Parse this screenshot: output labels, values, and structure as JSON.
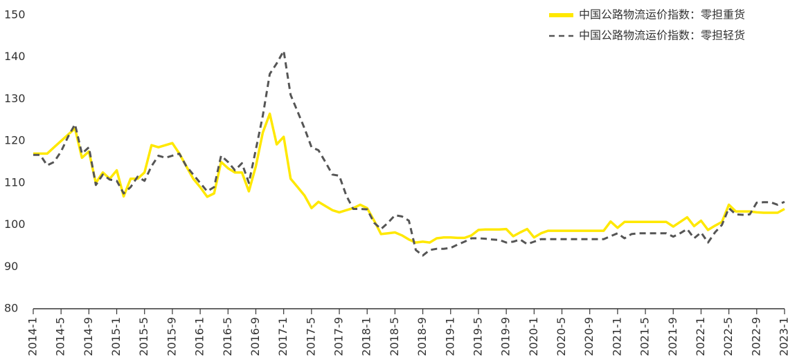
{
  "chart_data": {
    "type": "line",
    "categories": [
      "2014-1",
      null,
      null,
      null,
      "2014-5",
      null,
      null,
      null,
      "2014-9",
      null,
      null,
      null,
      "2015-1",
      null,
      null,
      null,
      "2015-5",
      null,
      null,
      null,
      "2015-9",
      null,
      null,
      null,
      "2016-1",
      null,
      null,
      null,
      "2016-5",
      null,
      null,
      null,
      "2016-9",
      null,
      null,
      null,
      "2017-1",
      null,
      null,
      null,
      "2017-5",
      null,
      null,
      null,
      "2017-9",
      null,
      null,
      null,
      "2018-1",
      null,
      null,
      null,
      "2018-5",
      null,
      null,
      null,
      "2018-9",
      null,
      null,
      null,
      "2019-1",
      null,
      null,
      null,
      "2019-5",
      null,
      null,
      null,
      "2019-9",
      null,
      null,
      null,
      "2020-1",
      null,
      null,
      null,
      "2020-5",
      null,
      null,
      null,
      "2020-9",
      null,
      null,
      null,
      "2021-1",
      null,
      null,
      null,
      "2021-5",
      null,
      null,
      null,
      "2021-9",
      null,
      null,
      null,
      "2022-1",
      null,
      null,
      null,
      "2022-5",
      null,
      null,
      null,
      "2022-9",
      null,
      null,
      null,
      "2023-1"
    ],
    "series": [
      {
        "name": "中国公路物流运价指数：零担重货",
        "color": "#ffe800",
        "dash": false,
        "values": [
          117,
          117,
          117,
          118.5,
          120,
          121.5,
          123,
          116,
          117.5,
          110,
          112.5,
          111,
          113,
          106.8,
          111,
          111,
          112.5,
          119,
          118.5,
          119,
          119.5,
          117,
          114,
          111,
          109,
          106.7,
          107.5,
          115,
          113.5,
          112.5,
          112.5,
          108,
          114,
          122,
          126.5,
          119.2,
          121,
          111,
          109,
          107,
          104,
          105.5,
          104.5,
          103.5,
          103,
          103.5,
          104,
          104.8,
          104,
          101,
          97.8,
          98,
          98.2,
          97.5,
          96.5,
          95.8,
          96,
          95.8,
          96.8,
          97,
          97,
          96.9,
          96.9,
          97.5,
          98.8,
          98.9,
          98.9,
          98.9,
          99,
          97.3,
          98.2,
          99,
          97,
          98,
          98.6,
          98.6,
          98.6,
          98.6,
          98.6,
          98.6,
          98.6,
          98.6,
          98.6,
          100.8,
          99.3,
          100.7,
          100.7,
          100.7,
          100.7,
          100.7,
          100.7,
          100.7,
          99.6,
          100.7,
          101.8,
          99.7,
          101,
          98.8,
          99.8,
          100.7,
          104.8,
          103.2,
          103.2,
          103.2,
          103,
          102.9,
          102.9,
          102.9,
          103.8
        ]
      },
      {
        "name": "中国公路物流运价指数：零担轻货",
        "color": "#555555",
        "dash": true,
        "values": [
          116.7,
          116.7,
          114.2,
          115,
          117.5,
          121,
          124,
          117,
          118.5,
          109.5,
          112,
          110.8,
          110.5,
          107.5,
          109,
          111.5,
          110.5,
          114,
          116.5,
          116,
          116.5,
          117,
          114,
          112,
          110,
          108,
          109,
          116.5,
          115,
          113,
          114.7,
          110,
          118,
          126,
          136,
          138.5,
          141.5,
          131,
          127,
          123,
          118.5,
          117.8,
          115,
          112,
          111.7,
          107,
          103.8,
          103.8,
          103.7,
          100.5,
          99,
          100.5,
          102.3,
          102,
          101,
          94,
          92.7,
          94,
          94.3,
          94.3,
          94.5,
          95.3,
          96,
          96.8,
          96.8,
          96.7,
          96.5,
          96.4,
          95.8,
          96,
          96.5,
          95.4,
          96,
          96.6,
          96.6,
          96.6,
          96.6,
          96.6,
          96.6,
          96.6,
          96.6,
          96.6,
          96.6,
          97.3,
          98,
          96.8,
          97.8,
          98,
          98,
          98,
          98,
          98,
          97.2,
          98,
          99,
          96.8,
          98.2,
          95.8,
          98.2,
          100,
          104,
          102.5,
          102.4,
          102.5,
          105.3,
          105.4,
          105.4,
          104.8,
          105.5
        ]
      }
    ],
    "ylim": [
      80,
      150
    ],
    "yticks": [
      80,
      90,
      100,
      110,
      120,
      130,
      140,
      150
    ],
    "grid": false,
    "legend": "top-right"
  }
}
